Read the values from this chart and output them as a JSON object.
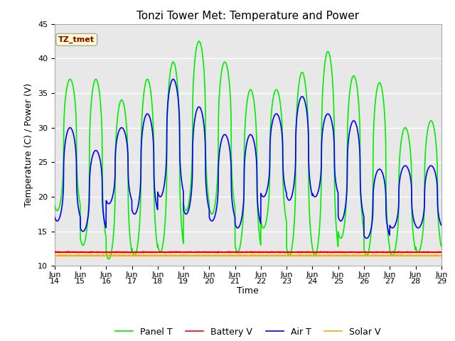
{
  "title": "Tonzi Tower Met: Temperature and Power",
  "ylabel": "Temperature (C) / Power (V)",
  "xlabel": "Time",
  "ylim": [
    10,
    45
  ],
  "xlim": [
    0,
    15
  ],
  "background_color": "#ffffff",
  "plot_bg_color": "#e8e8e8",
  "grid_color": "#ffffff",
  "tz_label": "TZ_tmet",
  "tz_box_color": "#ffffcc",
  "tz_text_color": "#8b0000",
  "x_tick_labels": [
    "Jun\n14",
    "Jun\n15",
    "Jun\n16",
    "Jun\n17",
    "Jun\n18",
    "Jun\n19",
    "Jun\n20",
    "Jun\n21",
    "Jun\n22",
    "Jun\n23",
    "Jun\n24",
    "Jun\n25",
    "Jun\n26",
    "Jun\n27",
    "Jun\n28",
    "Jun\n29"
  ],
  "x_tick_positions": [
    0,
    1,
    2,
    3,
    4,
    5,
    6,
    7,
    8,
    9,
    10,
    11,
    12,
    13,
    14,
    15
  ],
  "series": {
    "panel_t": {
      "color": "#00ee00",
      "label": "Panel T",
      "linewidth": 1.2
    },
    "battery_v": {
      "color": "#ff0000",
      "label": "Battery V",
      "linewidth": 1.2
    },
    "air_t": {
      "color": "#0000ff",
      "label": "Air T",
      "linewidth": 1.2
    },
    "solar_v": {
      "color": "#ffaa00",
      "label": "Solar V",
      "linewidth": 1.2
    }
  },
  "title_fontsize": 11,
  "axis_fontsize": 9,
  "tick_fontsize": 8,
  "panel_peaks": [
    37.0,
    37.0,
    34.0,
    37.0,
    39.5,
    42.5,
    39.5,
    35.5,
    35.5,
    38.0,
    41.0,
    37.5,
    36.5,
    30.0,
    31.0
  ],
  "panel_troughs": [
    18.0,
    13.0,
    11.0,
    11.5,
    12.0,
    18.0,
    17.5,
    12.0,
    15.5,
    11.5,
    11.5,
    14.0,
    11.5,
    11.5,
    12.0
  ],
  "air_peaks": [
    30.0,
    26.7,
    30.0,
    32.0,
    37.0,
    33.0,
    29.0,
    29.0,
    32.0,
    34.5,
    32.0,
    31.0,
    24.0,
    24.5,
    24.5
  ],
  "air_troughs": [
    16.5,
    15.0,
    19.0,
    17.5,
    20.0,
    17.5,
    16.5,
    15.5,
    20.0,
    19.5,
    20.0,
    16.5,
    14.0,
    15.5,
    15.5
  ],
  "battery_v_mean": 12.0,
  "solar_v_mean": 11.5
}
